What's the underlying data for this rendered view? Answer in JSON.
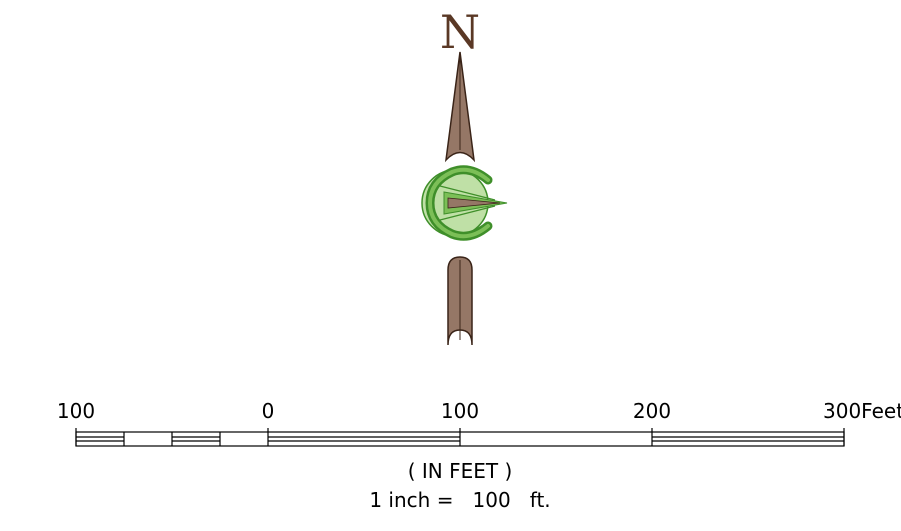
{
  "north_arrow": {
    "letter": "N",
    "colors": {
      "letter": "#5a3825",
      "needle_fill": "#957766",
      "needle_stroke": "#3a2418",
      "emblem_light": "#bfe0a6",
      "emblem_mid": "#7cbf57",
      "emblem_dark": "#3f8f2a"
    }
  },
  "scale_bar": {
    "labels": [
      "100",
      "0",
      "100",
      "200",
      "300Feet"
    ],
    "caption_units": "( IN FEET )",
    "caption_ratio": "1 inch =   100   ft.",
    "color": "#000000"
  }
}
